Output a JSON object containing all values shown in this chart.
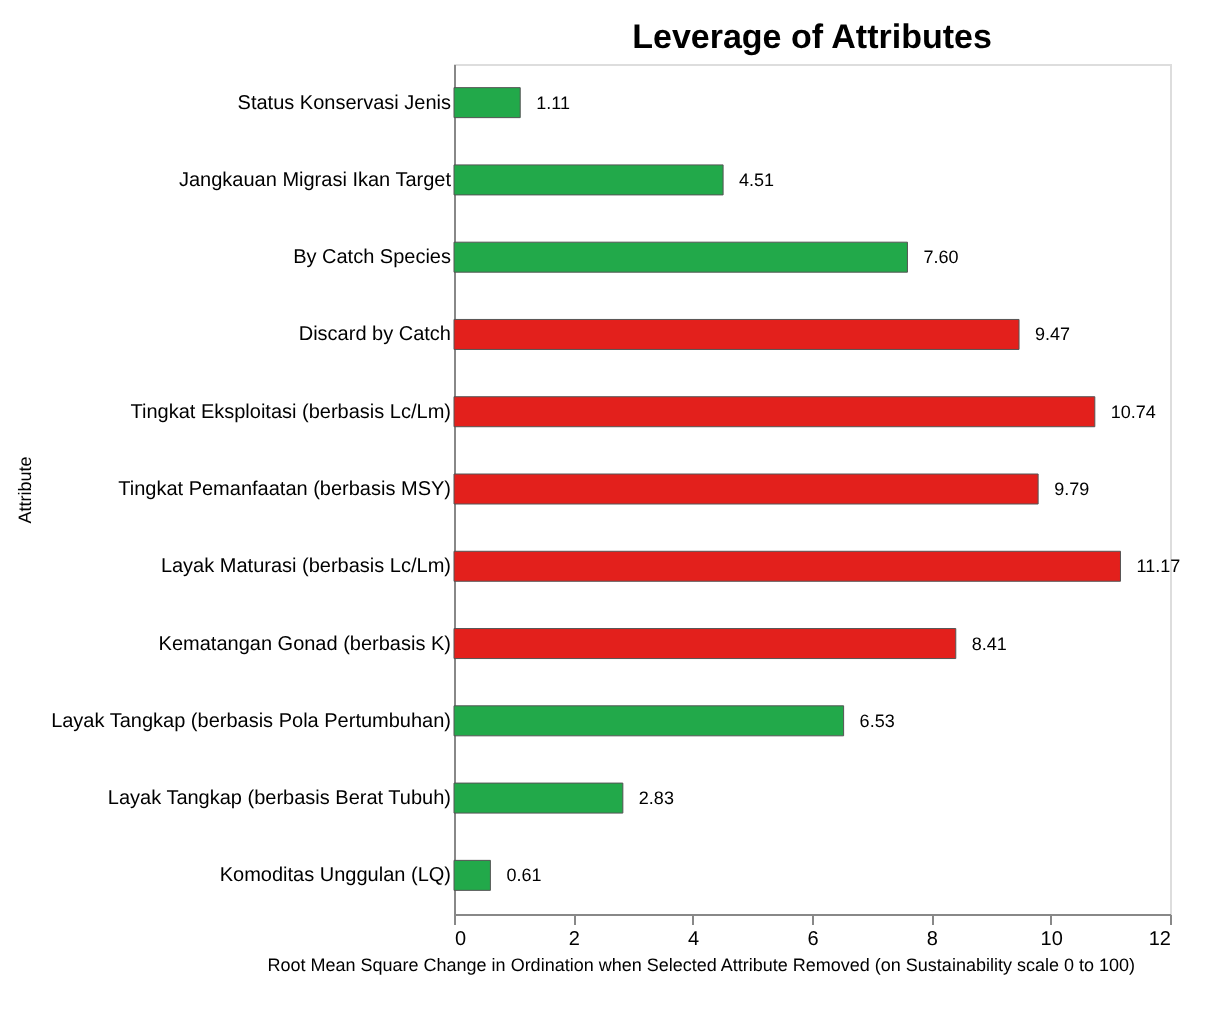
{
  "chart_data": {
    "type": "bar",
    "orientation": "horizontal",
    "title": "Leverage of Attributes",
    "xlabel": "Root Mean Square Change in Ordination when Selected Attribute Removed (on Sustainability scale 0 to 100)",
    "ylabel": "Attribute",
    "categories": [
      "Status Konservasi Jenis",
      "Jangkauan Migrasi Ikan Target",
      "By Catch Species",
      "Discard by Catch",
      "Tingkat Eksploitasi (berbasis Lc/Lm)",
      "Tingkat Pemanfaatan (berbasis MSY)",
      "Layak Maturasi (berbasis Lc/Lm)",
      "Kematangan Gonad (berbasis K)",
      "Layak Tangkap (berbasis Pola Pertumbuhan)",
      "Layak Tangkap (berbasis Berat Tubuh)",
      "Komoditas Unggulan (LQ)"
    ],
    "values": [
      1.11,
      4.51,
      7.6,
      9.47,
      10.74,
      9.79,
      11.17,
      8.41,
      6.53,
      2.83,
      0.61
    ],
    "value_labels": [
      "1.11",
      "4.51",
      "7.60",
      "9.47",
      "10.74",
      "9.79",
      "11.17",
      "8.41",
      "6.53",
      "2.83",
      "0.61"
    ],
    "colors": [
      "#22a94a",
      "#22a94a",
      "#22a94a",
      "#e3201c",
      "#e3201c",
      "#e3201c",
      "#e3201c",
      "#e3201c",
      "#22a94a",
      "#22a94a",
      "#22a94a"
    ],
    "xlim": [
      0,
      12
    ],
    "xticks": [
      0,
      2,
      4,
      6,
      8,
      10,
      12
    ],
    "grid": false
  }
}
